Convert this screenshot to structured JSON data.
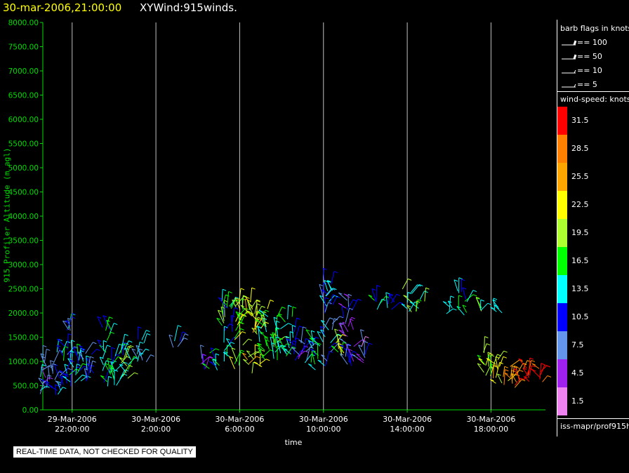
{
  "header": {
    "date_title": "30-mar-2006,21:00:00",
    "plot_title": "XYWind:915winds."
  },
  "chart_data": {
    "type": "scatter",
    "subtype": "wind-barb time-height",
    "ylabel": "915 Profiler Altitude (m agl)",
    "xlabel": "time",
    "ylim": [
      0,
      8000
    ],
    "yticks": [
      "0.00",
      "500.00",
      "1000.00",
      "1500.00",
      "2000.00",
      "2500.00",
      "3000.00",
      "3500.00",
      "4000.00",
      "4500.00",
      "5000.00",
      "5500.00",
      "6000.00",
      "6500.00",
      "7000.00",
      "7500.00",
      "8000.00"
    ],
    "xlim_hours": [
      20.6,
      44.6
    ],
    "xticks": [
      {
        "date": "29-Mar-2006",
        "time": "22:00:00"
      },
      {
        "date": "30-Mar-2006",
        "time": "2:00:00"
      },
      {
        "date": "30-Mar-2006",
        "time": "6:00:00"
      },
      {
        "date": "30-Mar-2006",
        "time": "10:00:00"
      },
      {
        "date": "30-Mar-2006",
        "time": "14:00:00"
      },
      {
        "date": "30-Mar-2006",
        "time": "18:00:00"
      }
    ],
    "grid": "vertical",
    "clusters": [
      {
        "t": 20.7,
        "alt_min": 250,
        "alt_max": 1100,
        "speed": 9
      },
      {
        "t": 21.3,
        "alt_min": 300,
        "alt_max": 1200,
        "speed": 10
      },
      {
        "t": 21.8,
        "alt_min": 400,
        "alt_max": 1800,
        "speed": 12
      },
      {
        "t": 22.3,
        "alt_min": 500,
        "alt_max": 1200,
        "speed": 13
      },
      {
        "t": 22.8,
        "alt_min": 550,
        "alt_max": 1250,
        "speed": 11
      },
      {
        "t": 23.7,
        "alt_min": 450,
        "alt_max": 1700,
        "speed": 14
      },
      {
        "t": 24.2,
        "alt_min": 500,
        "alt_max": 1300,
        "speed": 15
      },
      {
        "t": 24.6,
        "alt_min": 600,
        "alt_max": 1250,
        "speed": 17
      },
      {
        "t": 25.3,
        "alt_min": 900,
        "alt_max": 1500,
        "speed": 12
      },
      {
        "t": 27.0,
        "alt_min": 1200,
        "alt_max": 1500,
        "speed": 10
      },
      {
        "t": 28.2,
        "alt_min": 800,
        "alt_max": 1100,
        "speed": 6
      },
      {
        "t": 28.8,
        "alt_min": 800,
        "alt_max": 1200,
        "speed": 14
      },
      {
        "t": 29.4,
        "alt_min": 900,
        "alt_max": 2300,
        "speed": 15
      },
      {
        "t": 30.0,
        "alt_min": 800,
        "alt_max": 2200,
        "speed": 20
      },
      {
        "t": 30.6,
        "alt_min": 750,
        "alt_max": 2300,
        "speed": 22
      },
      {
        "t": 31.2,
        "alt_min": 850,
        "alt_max": 2100,
        "speed": 18
      },
      {
        "t": 31.8,
        "alt_min": 900,
        "alt_max": 2000,
        "speed": 16
      },
      {
        "t": 32.4,
        "alt_min": 1000,
        "alt_max": 2000,
        "speed": 14
      },
      {
        "t": 33.0,
        "alt_min": 900,
        "alt_max": 1500,
        "speed": 9
      },
      {
        "t": 33.6,
        "alt_min": 800,
        "alt_max": 1500,
        "speed": 13
      },
      {
        "t": 34.2,
        "alt_min": 850,
        "alt_max": 2600,
        "speed": 11
      },
      {
        "t": 34.8,
        "alt_min": 1100,
        "alt_max": 1500,
        "speed": 20
      },
      {
        "t": 35.2,
        "alt_min": 900,
        "alt_max": 2400,
        "speed": 8
      },
      {
        "t": 35.8,
        "alt_min": 950,
        "alt_max": 1400,
        "speed": 6
      },
      {
        "t": 36.5,
        "alt_min": 2000,
        "alt_max": 2300,
        "speed": 13
      },
      {
        "t": 37.3,
        "alt_min": 2000,
        "alt_max": 2300,
        "speed": 11
      },
      {
        "t": 38.0,
        "alt_min": 2000,
        "alt_max": 2500,
        "speed": 15
      },
      {
        "t": 38.6,
        "alt_min": 2000,
        "alt_max": 2300,
        "speed": 17
      },
      {
        "t": 39.9,
        "alt_min": 1950,
        "alt_max": 2200,
        "speed": 12
      },
      {
        "t": 40.6,
        "alt_min": 1950,
        "alt_max": 2500,
        "speed": 14
      },
      {
        "t": 41.6,
        "alt_min": 1950,
        "alt_max": 2100,
        "speed": 15
      },
      {
        "t": 42.3,
        "alt_min": 1950,
        "alt_max": 2100,
        "speed": 11
      },
      {
        "t": 41.8,
        "alt_min": 500,
        "alt_max": 1200,
        "speed": 19
      },
      {
        "t": 42.3,
        "alt_min": 500,
        "alt_max": 1050,
        "speed": 22
      },
      {
        "t": 42.8,
        "alt_min": 450,
        "alt_max": 950,
        "speed": 26
      },
      {
        "t": 43.3,
        "alt_min": 450,
        "alt_max": 900,
        "speed": 27
      },
      {
        "t": 43.8,
        "alt_min": 500,
        "alt_max": 900,
        "speed": 29
      },
      {
        "t": 44.3,
        "alt_min": 550,
        "alt_max": 900,
        "speed": 31
      }
    ]
  },
  "legend": {
    "barb_title": "barb flags in knots",
    "barbs": [
      {
        "label": "== 100"
      },
      {
        "label": "== 50"
      },
      {
        "label": "== 10"
      },
      {
        "label": "== 5"
      }
    ],
    "speed_title": "wind-speed: knots",
    "color_scale": [
      {
        "label": "31.5",
        "color": "#ff0000"
      },
      {
        "label": "28.5",
        "color": "#ff7f00"
      },
      {
        "label": "25.5",
        "color": "#ffa500"
      },
      {
        "label": "22.5",
        "color": "#ffff00"
      },
      {
        "label": "19.5",
        "color": "#adff2f"
      },
      {
        "label": "16.5",
        "color": "#00ff00"
      },
      {
        "label": "13.5",
        "color": "#00ffff"
      },
      {
        "label": "10.5",
        "color": "#0000ff"
      },
      {
        "label": "7.5",
        "color": "#6495ed"
      },
      {
        "label": "4.5",
        "color": "#a020f0"
      },
      {
        "label": "1.5",
        "color": "#ee82ee"
      }
    ],
    "source": "iss-mapr/prof915h"
  },
  "qc_notice": "REAL-TIME DATA, NOT CHECKED FOR QUALITY",
  "colors": {
    "axis": "#00dd00",
    "grid": "#c0c0c0",
    "title_date": "#ffff00"
  }
}
